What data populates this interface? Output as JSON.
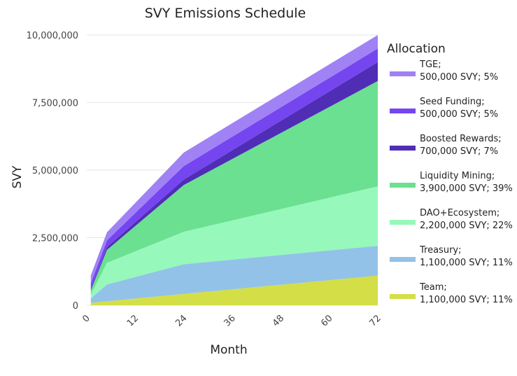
{
  "chart_data": {
    "type": "area",
    "stacked": true,
    "title": "SVY Emissions Schedule",
    "xlabel": "Month",
    "ylabel": "SVY",
    "xlim": [
      0,
      72
    ],
    "ylim": [
      0,
      10000000
    ],
    "x_ticks": [
      "0",
      "12",
      "24",
      "36",
      "48",
      "60",
      "72"
    ],
    "y_ticks": [
      "0",
      "2,500,000",
      "5,000,000",
      "7,500,000",
      "10,000,000"
    ],
    "grid": true,
    "legend_title": "Allocation",
    "legend_position": "right",
    "x": [
      1,
      5,
      24,
      72
    ],
    "series": [
      {
        "name": "Team",
        "label_line1": "Team;",
        "label_line2": "1,100,000 SVY; 11%",
        "color": "#d4de47",
        "values": [
          90000,
          150000,
          420000,
          1100000
        ]
      },
      {
        "name": "Treasury",
        "label_line1": "Treasury;",
        "label_line2": "1,100,000 SVY; 11%",
        "color": "#92c2e8",
        "values": [
          160000,
          620000,
          1100000,
          1100000
        ]
      },
      {
        "name": "DAO+Ecosystem",
        "label_line1": "DAO+Ecosystem;",
        "label_line2": "2,200,000 SVY; 22%",
        "color": "#96f8bb",
        "values": [
          150000,
          800000,
          1200000,
          2200000
        ]
      },
      {
        "name": "Liquidity Mining",
        "label_line1": "Liquidity Mining;",
        "label_line2": "3,900,000 SVY; 39%",
        "color": "#6be090",
        "values": [
          150000,
          480000,
          1730000,
          3900000
        ]
      },
      {
        "name": "Boosted Rewards",
        "label_line1": "Boosted Rewards;",
        "label_line2": "700,000 SVY; 7%",
        "color": "#4f2db5",
        "values": [
          50000,
          100000,
          200000,
          700000
        ]
      },
      {
        "name": "Seed Funding",
        "label_line1": "Seed Funding;",
        "label_line2": "500,000 SVY; 5%",
        "color": "#7545f0",
        "values": [
          200000,
          250000,
          500000,
          500000
        ]
      },
      {
        "name": "TGE",
        "label_line1": "TGE;",
        "label_line2": "500,000 SVY; 5%",
        "color": "#a082f5",
        "values": [
          300000,
          300000,
          500000,
          500000
        ]
      }
    ]
  }
}
